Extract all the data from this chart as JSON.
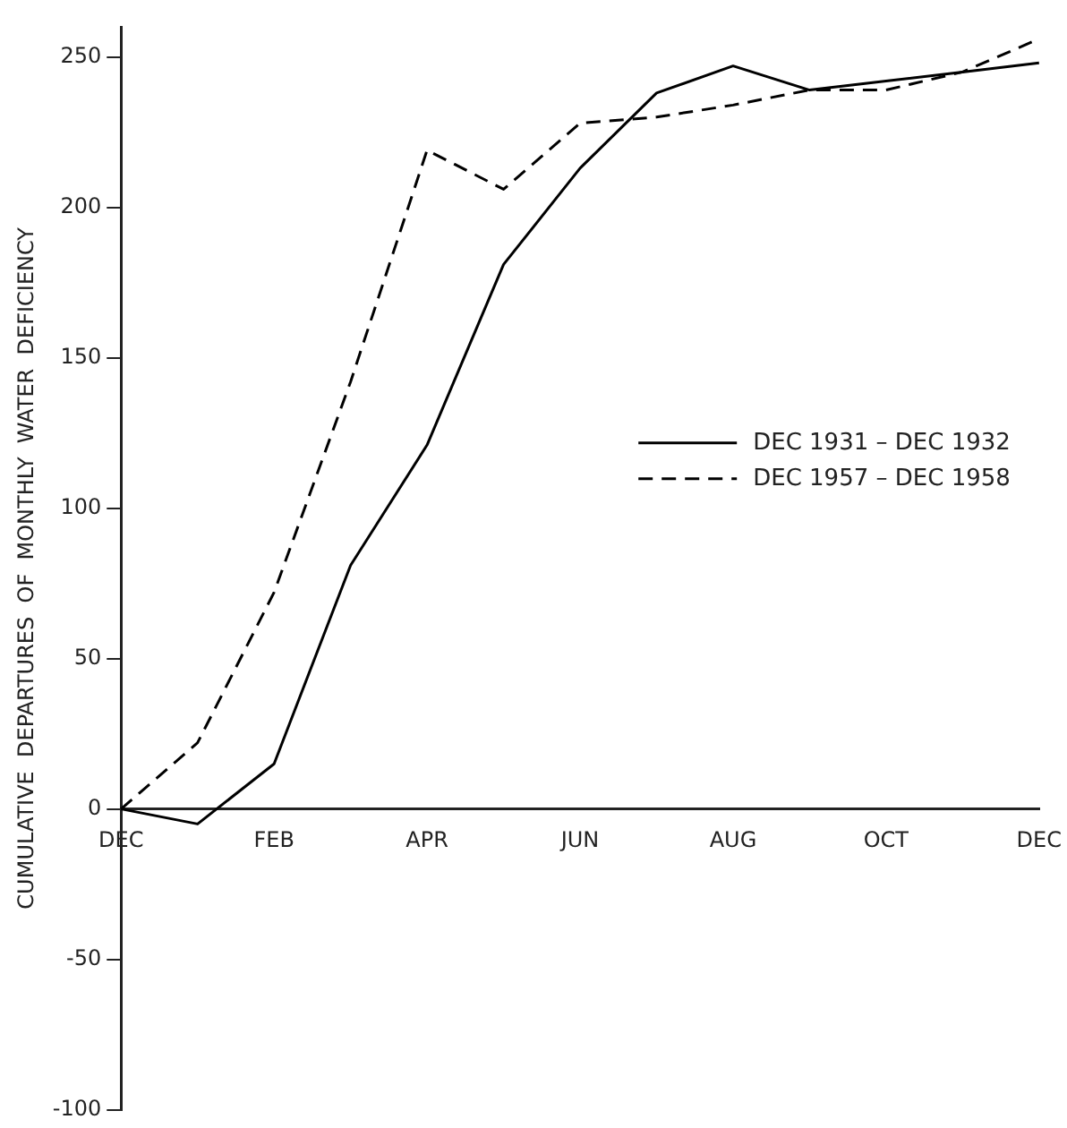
{
  "chart_data": {
    "type": "line",
    "ylabel": "CUMULATIVE  DEPARTURES  OF  MONTHLY  WATER  DEFICIENCY",
    "categories": [
      "DEC",
      null,
      "FEB",
      null,
      "APR",
      null,
      "JUN",
      null,
      "AUG",
      null,
      "OCT",
      null,
      "DEC"
    ],
    "series": [
      {
        "name": "DEC 1931 – DEC 1932",
        "color": "#000000",
        "line_style": "solid",
        "values": [
          0,
          -5,
          15,
          81,
          121,
          181,
          213,
          238,
          247,
          239,
          242,
          245,
          248
        ]
      },
      {
        "name": "DEC 1957 – DEC 1958",
        "color": "#000000",
        "line_style": "dashed",
        "values": [
          0,
          22,
          72,
          142,
          219,
          206,
          228,
          230,
          234,
          239,
          239,
          245,
          256
        ]
      }
    ],
    "ylim": [
      -100,
      260
    ],
    "yticks": [
      -100,
      -50,
      0,
      50,
      100,
      150,
      200,
      250
    ],
    "grid": false,
    "legend": "right",
    "marker": "none"
  }
}
